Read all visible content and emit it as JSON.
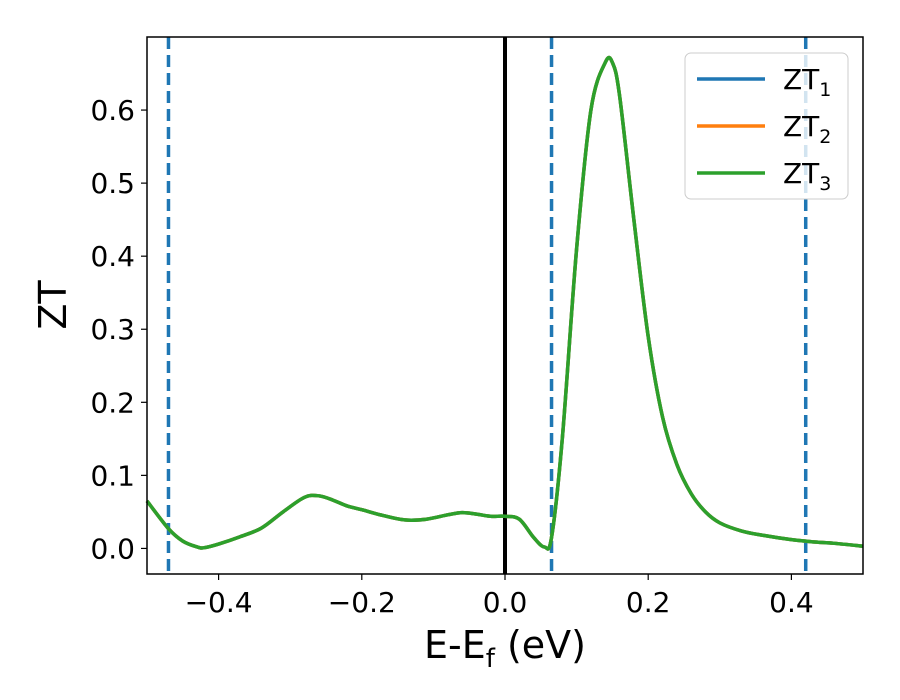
{
  "chart_data": {
    "type": "line",
    "title": "",
    "xlabel": {
      "base": "E-E",
      "sub": "f",
      "suffix": " (eV)"
    },
    "ylabel": "ZT",
    "xlim": [
      -0.5,
      0.5
    ],
    "ylim": [
      -0.035,
      0.7
    ],
    "xticks": [
      -0.4,
      -0.2,
      0.0,
      0.2,
      0.4
    ],
    "xtick_labels": [
      "−0.4",
      "−0.2",
      "0.0",
      "0.2",
      "0.4"
    ],
    "yticks": [
      0.0,
      0.1,
      0.2,
      0.3,
      0.4,
      0.5,
      0.6
    ],
    "ytick_labels": [
      "0.0",
      "0.1",
      "0.2",
      "0.3",
      "0.4",
      "0.5",
      "0.6"
    ],
    "grid": false,
    "legend_position": "top-right",
    "series": [
      {
        "name": "ZT",
        "subscript": "1",
        "color": "#1f77b4",
        "x": [
          -0.5,
          -0.47,
          -0.45,
          -0.43,
          -0.42,
          -0.4,
          -0.37,
          -0.34,
          -0.31,
          -0.28,
          -0.26,
          -0.24,
          -0.22,
          -0.2,
          -0.17,
          -0.14,
          -0.11,
          -0.08,
          -0.06,
          -0.04,
          -0.02,
          0.0,
          0.02,
          0.04,
          0.055,
          0.065,
          0.08,
          0.1,
          0.12,
          0.14,
          0.15,
          0.16,
          0.18,
          0.2,
          0.22,
          0.24,
          0.26,
          0.28,
          0.3,
          0.33,
          0.36,
          0.4,
          0.43,
          0.46,
          0.5
        ],
        "y": [
          0.065,
          0.027,
          0.01,
          0.002,
          0.001,
          0.006,
          0.016,
          0.028,
          0.05,
          0.07,
          0.072,
          0.066,
          0.058,
          0.053,
          0.045,
          0.039,
          0.04,
          0.046,
          0.049,
          0.047,
          0.044,
          0.044,
          0.04,
          0.015,
          0.002,
          0.015,
          0.15,
          0.41,
          0.6,
          0.665,
          0.665,
          0.62,
          0.45,
          0.29,
          0.18,
          0.115,
          0.075,
          0.05,
          0.035,
          0.024,
          0.018,
          0.012,
          0.009,
          0.007,
          0.003
        ]
      },
      {
        "name": "ZT",
        "subscript": "2",
        "color": "#ff7f0e",
        "x": [
          -0.5,
          -0.47,
          -0.45,
          -0.43,
          -0.42,
          -0.4,
          -0.37,
          -0.34,
          -0.31,
          -0.28,
          -0.26,
          -0.24,
          -0.22,
          -0.2,
          -0.17,
          -0.14,
          -0.11,
          -0.08,
          -0.06,
          -0.04,
          -0.02,
          0.0,
          0.02,
          0.04,
          0.055,
          0.065,
          0.08,
          0.1,
          0.12,
          0.14,
          0.15,
          0.16,
          0.18,
          0.2,
          0.22,
          0.24,
          0.26,
          0.28,
          0.3,
          0.33,
          0.36,
          0.4,
          0.43,
          0.46,
          0.5
        ],
        "y": [
          0.065,
          0.027,
          0.01,
          0.002,
          0.001,
          0.006,
          0.016,
          0.028,
          0.05,
          0.07,
          0.072,
          0.066,
          0.058,
          0.053,
          0.045,
          0.039,
          0.04,
          0.046,
          0.049,
          0.047,
          0.044,
          0.044,
          0.04,
          0.015,
          0.002,
          0.015,
          0.15,
          0.41,
          0.6,
          0.665,
          0.665,
          0.62,
          0.45,
          0.29,
          0.18,
          0.115,
          0.075,
          0.05,
          0.035,
          0.024,
          0.018,
          0.012,
          0.009,
          0.007,
          0.003
        ]
      },
      {
        "name": "ZT",
        "subscript": "3",
        "color": "#2ca02c",
        "x": [
          -0.5,
          -0.47,
          -0.45,
          -0.43,
          -0.42,
          -0.4,
          -0.37,
          -0.34,
          -0.31,
          -0.28,
          -0.26,
          -0.24,
          -0.22,
          -0.2,
          -0.17,
          -0.14,
          -0.11,
          -0.08,
          -0.06,
          -0.04,
          -0.02,
          0.0,
          0.02,
          0.04,
          0.055,
          0.065,
          0.08,
          0.1,
          0.12,
          0.14,
          0.15,
          0.16,
          0.18,
          0.2,
          0.22,
          0.24,
          0.26,
          0.28,
          0.3,
          0.33,
          0.36,
          0.4,
          0.43,
          0.46,
          0.5
        ],
        "y": [
          0.065,
          0.027,
          0.01,
          0.002,
          0.001,
          0.006,
          0.016,
          0.028,
          0.05,
          0.07,
          0.072,
          0.066,
          0.058,
          0.053,
          0.045,
          0.039,
          0.04,
          0.046,
          0.049,
          0.047,
          0.044,
          0.044,
          0.04,
          0.015,
          0.002,
          0.015,
          0.15,
          0.41,
          0.6,
          0.665,
          0.665,
          0.62,
          0.45,
          0.29,
          0.18,
          0.115,
          0.075,
          0.05,
          0.035,
          0.024,
          0.018,
          0.012,
          0.009,
          0.007,
          0.003
        ]
      }
    ],
    "vlines": [
      {
        "x": -0.47,
        "style": "dashed",
        "color": "#1f77b4"
      },
      {
        "x": 0.065,
        "style": "dashed",
        "color": "#1f77b4"
      },
      {
        "x": 0.42,
        "style": "dashed",
        "color": "#1f77b4"
      },
      {
        "x": 0.0,
        "style": "solid",
        "color": "#000000"
      }
    ]
  }
}
